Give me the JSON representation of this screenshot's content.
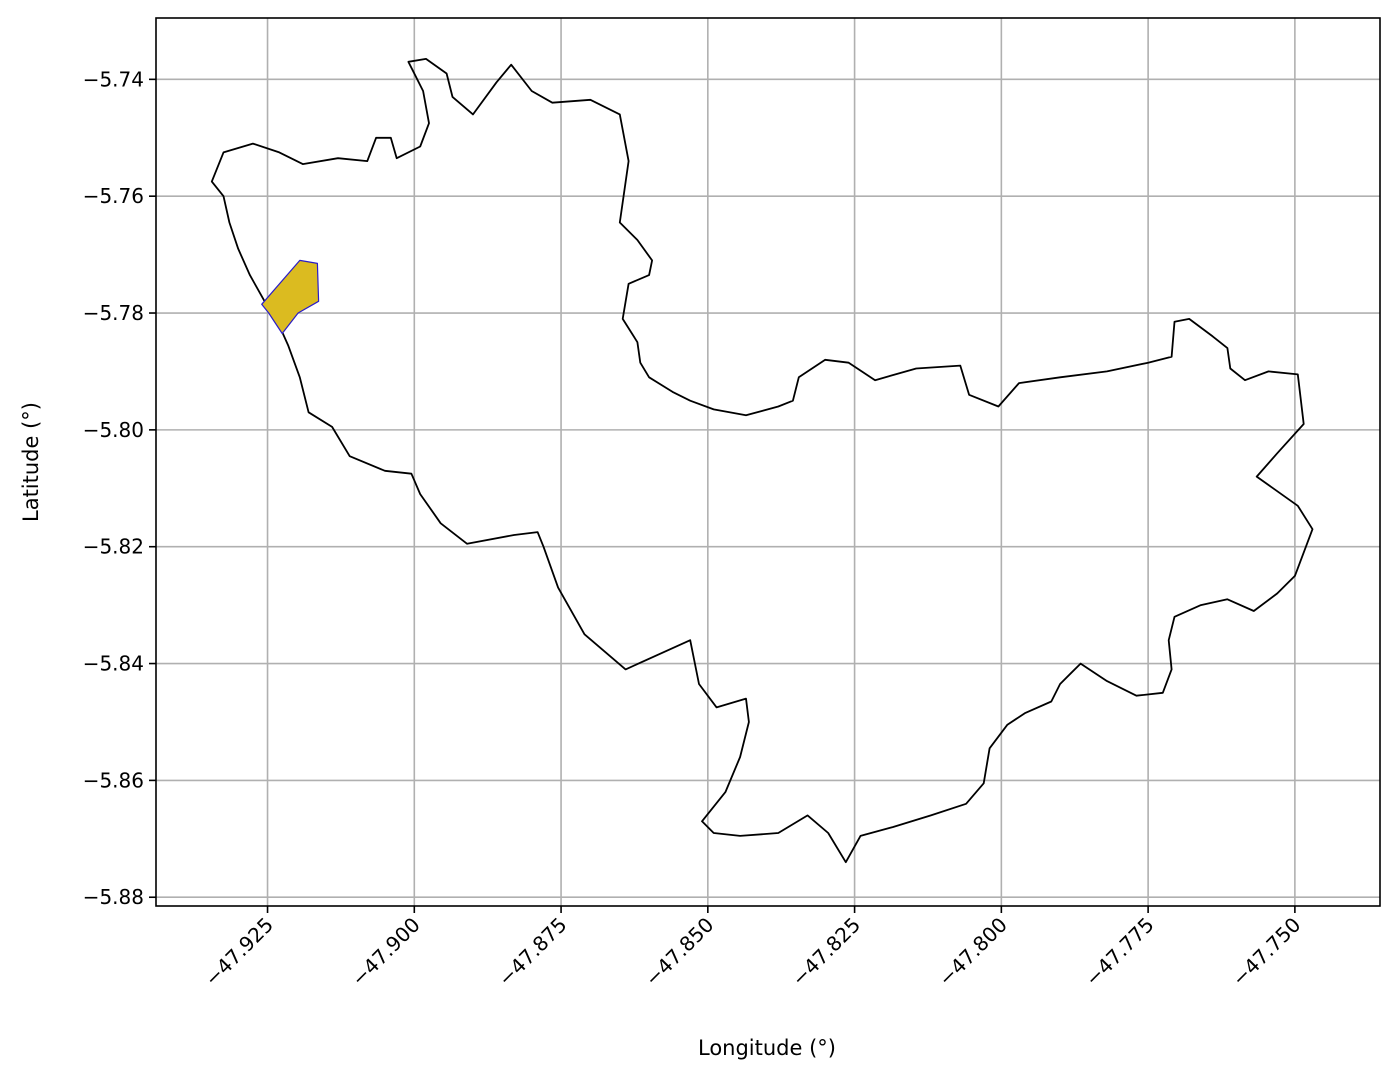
{
  "chart_data": {
    "type": "map",
    "xlabel": "Longitude (°)",
    "ylabel": "Latitude (°)",
    "xlim": [
      -47.944,
      -47.7355
    ],
    "ylim": [
      -5.8815,
      -5.7295
    ],
    "grid": true,
    "x_ticks": [
      -47.925,
      -47.9,
      -47.875,
      -47.85,
      -47.825,
      -47.8,
      -47.775,
      -47.75
    ],
    "x_tick_labels": [
      "−47.925",
      "−47.900",
      "−47.875",
      "−47.850",
      "−47.825",
      "−47.800",
      "−47.775",
      "−47.750"
    ],
    "y_ticks": [
      -5.74,
      -5.76,
      -5.78,
      -5.8,
      -5.82,
      -5.84,
      -5.86,
      -5.88
    ],
    "y_tick_labels": [
      "−5.74",
      "−5.76",
      "−5.78",
      "−5.80",
      "−5.82",
      "−5.84",
      "−5.86",
      "−5.88"
    ],
    "boundary": {
      "stroke": "#000000",
      "fill": "none",
      "coordinates": [
        [
          -47.9345,
          -5.7575
        ],
        [
          -47.9325,
          -5.7525
        ],
        [
          -47.9275,
          -5.751
        ],
        [
          -47.923,
          -5.7525
        ],
        [
          -47.919,
          -5.7545
        ],
        [
          -47.913,
          -5.7535
        ],
        [
          -47.908,
          -5.754
        ],
        [
          -47.9065,
          -5.75
        ],
        [
          -47.904,
          -5.75
        ],
        [
          -47.903,
          -5.7535
        ],
        [
          -47.899,
          -5.7515
        ],
        [
          -47.8975,
          -5.7475
        ],
        [
          -47.8985,
          -5.742
        ],
        [
          -47.901,
          -5.737
        ],
        [
          -47.898,
          -5.7365
        ],
        [
          -47.8945,
          -5.739
        ],
        [
          -47.8935,
          -5.743
        ],
        [
          -47.89,
          -5.746
        ],
        [
          -47.886,
          -5.7405
        ],
        [
          -47.8835,
          -5.7375
        ],
        [
          -47.88,
          -5.742
        ],
        [
          -47.8765,
          -5.744
        ],
        [
          -47.87,
          -5.7435
        ],
        [
          -47.865,
          -5.746
        ],
        [
          -47.8635,
          -5.754
        ],
        [
          -47.865,
          -5.7645
        ],
        [
          -47.862,
          -5.7675
        ],
        [
          -47.8595,
          -5.771
        ],
        [
          -47.86,
          -5.7735
        ],
        [
          -47.8635,
          -5.775
        ],
        [
          -47.8645,
          -5.781
        ],
        [
          -47.862,
          -5.785
        ],
        [
          -47.8615,
          -5.7885
        ],
        [
          -47.86,
          -5.791
        ],
        [
          -47.856,
          -5.7935
        ],
        [
          -47.853,
          -5.795
        ],
        [
          -47.849,
          -5.7965
        ],
        [
          -47.8435,
          -5.7975
        ],
        [
          -47.838,
          -5.796
        ],
        [
          -47.8355,
          -5.795
        ],
        [
          -47.8345,
          -5.791
        ],
        [
          -47.83,
          -5.788
        ],
        [
          -47.826,
          -5.7885
        ],
        [
          -47.8215,
          -5.7915
        ],
        [
          -47.8145,
          -5.7895
        ],
        [
          -47.807,
          -5.789
        ],
        [
          -47.8055,
          -5.794
        ],
        [
          -47.8005,
          -5.796
        ],
        [
          -47.797,
          -5.792
        ],
        [
          -47.79,
          -5.791
        ],
        [
          -47.782,
          -5.79
        ],
        [
          -47.775,
          -5.7885
        ],
        [
          -47.771,
          -5.7875
        ],
        [
          -47.7705,
          -5.7815
        ],
        [
          -47.768,
          -5.781
        ],
        [
          -47.764,
          -5.784
        ],
        [
          -47.7615,
          -5.786
        ],
        [
          -47.761,
          -5.7895
        ],
        [
          -47.7585,
          -5.7915
        ],
        [
          -47.7545,
          -5.79
        ],
        [
          -47.7495,
          -5.7905
        ],
        [
          -47.7485,
          -5.799
        ],
        [
          -47.753,
          -5.804
        ],
        [
          -47.7565,
          -5.808
        ],
        [
          -47.7495,
          -5.813
        ],
        [
          -47.747,
          -5.817
        ],
        [
          -47.75,
          -5.825
        ],
        [
          -47.753,
          -5.828
        ],
        [
          -47.757,
          -5.831
        ],
        [
          -47.7615,
          -5.829
        ],
        [
          -47.766,
          -5.83
        ],
        [
          -47.7705,
          -5.832
        ],
        [
          -47.7715,
          -5.836
        ],
        [
          -47.771,
          -5.841
        ],
        [
          -47.7725,
          -5.845
        ],
        [
          -47.777,
          -5.8455
        ],
        [
          -47.782,
          -5.843
        ],
        [
          -47.7865,
          -5.84
        ],
        [
          -47.788,
          -5.8415
        ],
        [
          -47.79,
          -5.8435
        ],
        [
          -47.7915,
          -5.8465
        ],
        [
          -47.796,
          -5.8485
        ],
        [
          -47.799,
          -5.8505
        ],
        [
          -47.802,
          -5.8545
        ],
        [
          -47.803,
          -5.8605
        ],
        [
          -47.806,
          -5.864
        ],
        [
          -47.812,
          -5.866
        ],
        [
          -47.8185,
          -5.868
        ],
        [
          -47.824,
          -5.8695
        ],
        [
          -47.8265,
          -5.874
        ],
        [
          -47.8295,
          -5.869
        ],
        [
          -47.833,
          -5.866
        ],
        [
          -47.838,
          -5.869
        ],
        [
          -47.8445,
          -5.8695
        ],
        [
          -47.849,
          -5.869
        ],
        [
          -47.851,
          -5.867
        ],
        [
          -47.847,
          -5.862
        ],
        [
          -47.8445,
          -5.856
        ],
        [
          -47.843,
          -5.85
        ],
        [
          -47.8435,
          -5.846
        ],
        [
          -47.8485,
          -5.8475
        ],
        [
          -47.8515,
          -5.8435
        ],
        [
          -47.853,
          -5.836
        ],
        [
          -47.864,
          -5.841
        ],
        [
          -47.871,
          -5.835
        ],
        [
          -47.8755,
          -5.827
        ],
        [
          -47.878,
          -5.82
        ],
        [
          -47.879,
          -5.8175
        ],
        [
          -47.883,
          -5.818
        ],
        [
          -47.891,
          -5.8195
        ],
        [
          -47.8955,
          -5.816
        ],
        [
          -47.899,
          -5.811
        ],
        [
          -47.9005,
          -5.8075
        ],
        [
          -47.905,
          -5.807
        ],
        [
          -47.911,
          -5.8045
        ],
        [
          -47.914,
          -5.7995
        ],
        [
          -47.918,
          -5.797
        ],
        [
          -47.9195,
          -5.791
        ],
        [
          -47.9215,
          -5.7855
        ],
        [
          -47.9235,
          -5.781
        ],
        [
          -47.9255,
          -5.778
        ],
        [
          -47.928,
          -5.7735
        ],
        [
          -47.93,
          -5.769
        ],
        [
          -47.9315,
          -5.7645
        ],
        [
          -47.9325,
          -5.76
        ],
        [
          -47.9345,
          -5.7575
        ]
      ]
    },
    "highlight": {
      "fill": "#dbbb20",
      "stroke": "#2a1cc8",
      "coordinates": [
        [
          -47.926,
          -5.7785
        ],
        [
          -47.9195,
          -5.771
        ],
        [
          -47.9165,
          -5.7715
        ],
        [
          -47.9163,
          -5.778
        ],
        [
          -47.9198,
          -5.78
        ],
        [
          -47.9225,
          -5.7835
        ],
        [
          -47.9248,
          -5.78
        ],
        [
          -47.926,
          -5.7785
        ]
      ]
    }
  }
}
